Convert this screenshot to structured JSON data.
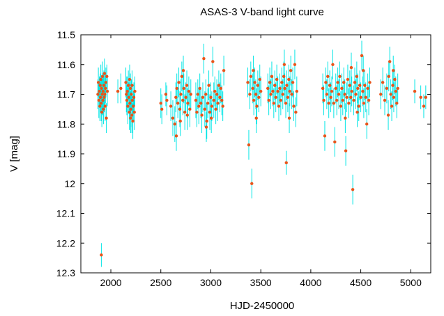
{
  "chart_data": {
    "type": "scatter",
    "title": "ASAS-3 V-band light curve",
    "xlabel": "HJD-2450000",
    "ylabel": "V [mag]",
    "xlim": [
      1700,
      5200
    ],
    "ylim": [
      11.5,
      12.3
    ],
    "y_inverted": true,
    "xticks": [
      2000,
      2500,
      3000,
      3500,
      4000,
      4500,
      5000
    ],
    "yticks": [
      11.5,
      11.6,
      11.7,
      11.8,
      11.9,
      12,
      12.1,
      12.2,
      12.3
    ],
    "grid": false,
    "legend": "none",
    "colors": {
      "point": "#e8541a",
      "errorbar": "#00e5e5",
      "frame": "#000000"
    },
    "points": [
      [
        1870,
        11.7,
        0.05
      ],
      [
        1875,
        11.66,
        0.05
      ],
      [
        1880,
        11.72,
        0.06
      ],
      [
        1885,
        11.69,
        0.05
      ],
      [
        1890,
        11.74,
        0.05
      ],
      [
        1893,
        11.67,
        0.04
      ],
      [
        1896,
        11.71,
        0.05
      ],
      [
        1900,
        11.65,
        0.05
      ],
      [
        1903,
        11.73,
        0.06
      ],
      [
        1906,
        11.68,
        0.04
      ],
      [
        1910,
        11.76,
        0.05
      ],
      [
        1913,
        11.7,
        0.05
      ],
      [
        1916,
        11.64,
        0.05
      ],
      [
        1920,
        11.72,
        0.05
      ],
      [
        1923,
        11.69,
        0.06
      ],
      [
        1926,
        11.75,
        0.05
      ],
      [
        1930,
        11.67,
        0.05
      ],
      [
        1933,
        11.71,
        0.05
      ],
      [
        1936,
        11.63,
        0.05
      ],
      [
        1940,
        11.7,
        0.04
      ],
      [
        1943,
        11.74,
        0.05
      ],
      [
        1946,
        11.68,
        0.05
      ],
      [
        1950,
        11.66,
        0.05
      ],
      [
        1955,
        11.78,
        0.05
      ],
      [
        1960,
        11.64,
        0.04
      ],
      [
        1965,
        11.69,
        0.05
      ],
      [
        1905,
        12.24,
        0.04
      ],
      [
        2070,
        11.69,
        0.04
      ],
      [
        2100,
        11.68,
        0.05
      ],
      [
        2150,
        11.66,
        0.05
      ],
      [
        2155,
        11.7,
        0.06
      ],
      [
        2160,
        11.72,
        0.05
      ],
      [
        2165,
        11.69,
        0.05
      ],
      [
        2170,
        11.74,
        0.06
      ],
      [
        2175,
        11.67,
        0.05
      ],
      [
        2180,
        11.71,
        0.05
      ],
      [
        2185,
        11.76,
        0.06
      ],
      [
        2190,
        11.73,
        0.05
      ],
      [
        2195,
        11.68,
        0.05
      ],
      [
        2200,
        11.75,
        0.06
      ],
      [
        2205,
        11.7,
        0.05
      ],
      [
        2210,
        11.77,
        0.06
      ],
      [
        2215,
        11.72,
        0.05
      ],
      [
        2220,
        11.79,
        0.06
      ],
      [
        2225,
        11.74,
        0.05
      ],
      [
        2230,
        11.71,
        0.05
      ],
      [
        2235,
        11.76,
        0.06
      ],
      [
        2240,
        11.69,
        0.05
      ],
      [
        2188,
        11.65,
        0.05
      ],
      [
        2198,
        11.78,
        0.05
      ],
      [
        2212,
        11.67,
        0.05
      ],
      [
        2500,
        11.73,
        0.05
      ],
      [
        2510,
        11.75,
        0.05
      ],
      [
        2550,
        11.7,
        0.04
      ],
      [
        2560,
        11.72,
        0.05
      ],
      [
        2600,
        11.74,
        0.05
      ],
      [
        2620,
        11.78,
        0.06
      ],
      [
        2640,
        11.8,
        0.06
      ],
      [
        2650,
        11.71,
        0.05
      ],
      [
        2655,
        11.84,
        0.05
      ],
      [
        2660,
        11.68,
        0.05
      ],
      [
        2670,
        11.73,
        0.05
      ],
      [
        2680,
        11.66,
        0.05
      ],
      [
        2690,
        11.75,
        0.06
      ],
      [
        2700,
        11.7,
        0.05
      ],
      [
        2710,
        11.64,
        0.05
      ],
      [
        2720,
        11.72,
        0.05
      ],
      [
        2730,
        11.68,
        0.05
      ],
      [
        2740,
        11.76,
        0.06
      ],
      [
        2750,
        11.71,
        0.05
      ],
      [
        2760,
        11.67,
        0.05
      ],
      [
        2770,
        11.73,
        0.05
      ],
      [
        2780,
        11.69,
        0.05
      ],
      [
        2790,
        11.75,
        0.06
      ],
      [
        2800,
        11.7,
        0.05
      ],
      [
        2695,
        11.79,
        0.05
      ],
      [
        2725,
        11.62,
        0.05
      ],
      [
        2765,
        11.77,
        0.05
      ],
      [
        2850,
        11.72,
        0.06
      ],
      [
        2860,
        11.76,
        0.05
      ],
      [
        2870,
        11.7,
        0.05
      ],
      [
        2880,
        11.74,
        0.06
      ],
      [
        2890,
        11.68,
        0.05
      ],
      [
        2900,
        11.73,
        0.05
      ],
      [
        2910,
        11.77,
        0.06
      ],
      [
        2920,
        11.71,
        0.05
      ],
      [
        2930,
        11.58,
        0.05
      ],
      [
        2940,
        11.75,
        0.06
      ],
      [
        2950,
        11.7,
        0.05
      ],
      [
        2960,
        11.79,
        0.06
      ],
      [
        2970,
        11.73,
        0.05
      ],
      [
        2980,
        11.67,
        0.05
      ],
      [
        2990,
        11.76,
        0.06
      ],
      [
        3000,
        11.71,
        0.05
      ],
      [
        3010,
        11.74,
        0.05
      ],
      [
        3020,
        11.59,
        0.05
      ],
      [
        3030,
        11.72,
        0.06
      ],
      [
        3040,
        11.69,
        0.05
      ],
      [
        3050,
        11.75,
        0.05
      ],
      [
        3060,
        11.7,
        0.05
      ],
      [
        3070,
        11.73,
        0.06
      ],
      [
        3080,
        11.67,
        0.05
      ],
      [
        3090,
        11.71,
        0.05
      ],
      [
        3100,
        11.68,
        0.05
      ],
      [
        3110,
        11.72,
        0.05
      ],
      [
        3120,
        11.74,
        0.05
      ],
      [
        3130,
        11.62,
        0.05
      ],
      [
        2955,
        11.81,
        0.05
      ],
      [
        3005,
        11.78,
        0.05
      ],
      [
        3370,
        11.66,
        0.05
      ],
      [
        3380,
        11.87,
        0.05
      ],
      [
        3390,
        11.7,
        0.05
      ],
      [
        3400,
        11.64,
        0.05
      ],
      [
        3410,
        12.0,
        0.05
      ],
      [
        3420,
        11.68,
        0.05
      ],
      [
        3430,
        11.72,
        0.05
      ],
      [
        3440,
        11.66,
        0.05
      ],
      [
        3450,
        11.7,
        0.05
      ],
      [
        3460,
        11.74,
        0.06
      ],
      [
        3470,
        11.67,
        0.05
      ],
      [
        3480,
        11.71,
        0.05
      ],
      [
        3490,
        11.65,
        0.05
      ],
      [
        3500,
        11.69,
        0.05
      ],
      [
        3425,
        11.62,
        0.05
      ],
      [
        3455,
        11.78,
        0.05
      ],
      [
        3570,
        11.68,
        0.05
      ],
      [
        3580,
        11.72,
        0.05
      ],
      [
        3590,
        11.66,
        0.05
      ],
      [
        3600,
        11.7,
        0.05
      ],
      [
        3610,
        11.64,
        0.05
      ],
      [
        3620,
        11.69,
        0.05
      ],
      [
        3630,
        11.73,
        0.05
      ],
      [
        3640,
        11.67,
        0.05
      ],
      [
        3650,
        11.71,
        0.05
      ],
      [
        3660,
        11.65,
        0.05
      ],
      [
        3670,
        11.69,
        0.05
      ],
      [
        3680,
        11.74,
        0.05
      ],
      [
        3690,
        11.68,
        0.05
      ],
      [
        3700,
        11.72,
        0.05
      ],
      [
        3710,
        11.66,
        0.05
      ],
      [
        3720,
        11.7,
        0.05
      ],
      [
        3730,
        11.64,
        0.05
      ],
      [
        3740,
        11.68,
        0.05
      ],
      [
        3750,
        11.73,
        0.05
      ],
      [
        3760,
        11.67,
        0.05
      ],
      [
        3770,
        11.71,
        0.05
      ],
      [
        3780,
        11.65,
        0.05
      ],
      [
        3790,
        11.69,
        0.05
      ],
      [
        3800,
        11.62,
        0.05
      ],
      [
        3810,
        11.7,
        0.05
      ],
      [
        3820,
        11.66,
        0.05
      ],
      [
        3830,
        11.74,
        0.05
      ],
      [
        3840,
        11.6,
        0.05
      ],
      [
        3850,
        11.76,
        0.05
      ],
      [
        3860,
        11.69,
        0.05
      ],
      [
        3755,
        11.93,
        0.04
      ],
      [
        3735,
        11.6,
        0.05
      ],
      [
        3785,
        11.78,
        0.05
      ],
      [
        4120,
        11.68,
        0.05
      ],
      [
        4130,
        11.72,
        0.05
      ],
      [
        4140,
        11.84,
        0.05
      ],
      [
        4150,
        11.66,
        0.05
      ],
      [
        4160,
        11.7,
        0.05
      ],
      [
        4170,
        11.64,
        0.05
      ],
      [
        4180,
        11.73,
        0.05
      ],
      [
        4190,
        11.67,
        0.05
      ],
      [
        4200,
        11.71,
        0.05
      ],
      [
        4210,
        11.69,
        0.05
      ],
      [
        4220,
        11.6,
        0.05
      ],
      [
        4230,
        11.73,
        0.05
      ],
      [
        4240,
        11.86,
        0.05
      ],
      [
        4250,
        11.68,
        0.05
      ],
      [
        4260,
        11.72,
        0.05
      ],
      [
        4270,
        11.66,
        0.05
      ],
      [
        4280,
        11.7,
        0.05
      ],
      [
        4290,
        11.64,
        0.05
      ],
      [
        4300,
        11.74,
        0.05
      ],
      [
        4310,
        11.68,
        0.05
      ],
      [
        4320,
        11.72,
        0.05
      ],
      [
        4330,
        11.66,
        0.05
      ],
      [
        4340,
        11.7,
        0.05
      ],
      [
        4350,
        11.89,
        0.05
      ],
      [
        4360,
        11.71,
        0.05
      ],
      [
        4370,
        11.65,
        0.05
      ],
      [
        4380,
        11.73,
        0.05
      ],
      [
        4390,
        11.67,
        0.05
      ],
      [
        4400,
        11.71,
        0.05
      ],
      [
        4410,
        11.69,
        0.05
      ],
      [
        4420,
        12.02,
        0.05
      ],
      [
        4430,
        11.72,
        0.05
      ],
      [
        4440,
        11.66,
        0.05
      ],
      [
        4450,
        11.7,
        0.05
      ],
      [
        4460,
        11.64,
        0.05
      ],
      [
        4470,
        11.68,
        0.05
      ],
      [
        4480,
        11.74,
        0.05
      ],
      [
        4490,
        11.67,
        0.05
      ],
      [
        4500,
        11.71,
        0.05
      ],
      [
        4510,
        11.57,
        0.05
      ],
      [
        4520,
        11.69,
        0.05
      ],
      [
        4530,
        11.73,
        0.05
      ],
      [
        4540,
        11.67,
        0.05
      ],
      [
        4550,
        11.71,
        0.05
      ],
      [
        4560,
        11.8,
        0.05
      ],
      [
        4570,
        11.68,
        0.05
      ],
      [
        4580,
        11.72,
        0.05
      ],
      [
        4590,
        11.66,
        0.05
      ],
      [
        4345,
        11.78,
        0.05
      ],
      [
        4405,
        11.61,
        0.05
      ],
      [
        4465,
        11.76,
        0.05
      ],
      [
        4525,
        11.62,
        0.05
      ],
      [
        4700,
        11.7,
        0.05
      ],
      [
        4720,
        11.66,
        0.05
      ],
      [
        4740,
        11.72,
        0.05
      ],
      [
        4760,
        11.68,
        0.05
      ],
      [
        4780,
        11.64,
        0.05
      ],
      [
        4790,
        11.59,
        0.05
      ],
      [
        4800,
        11.7,
        0.05
      ],
      [
        4810,
        11.74,
        0.05
      ],
      [
        4820,
        11.67,
        0.05
      ],
      [
        4830,
        11.71,
        0.05
      ],
      [
        4840,
        11.65,
        0.05
      ],
      [
        4850,
        11.69,
        0.05
      ],
      [
        4860,
        11.73,
        0.05
      ],
      [
        4870,
        11.68,
        0.05
      ],
      [
        4775,
        11.77,
        0.05
      ],
      [
        4825,
        11.62,
        0.05
      ],
      [
        5040,
        11.69,
        0.04
      ],
      [
        5100,
        11.71,
        0.04
      ],
      [
        5130,
        11.74,
        0.04
      ],
      [
        5150,
        11.71,
        0.04
      ]
    ]
  }
}
